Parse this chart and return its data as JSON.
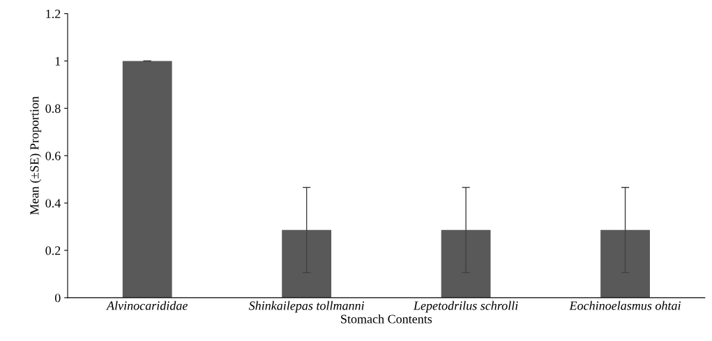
{
  "chart_data": {
    "type": "bar",
    "categories": [
      "Alvinocarididae",
      "Shinkailepas tollmanni",
      "Lepetodrilus schrolli",
      "Eochinoelasmus ohtai"
    ],
    "values": [
      1,
      0.286,
      0.286,
      0.286
    ],
    "errors": [
      0,
      0.18,
      0.18,
      0.18
    ],
    "color": "#595959",
    "xlabel": "Stomach Contents",
    "ylabel": "Mean (±SE) Proportion",
    "ylim": [
      0,
      1.2
    ],
    "yticks": [
      0,
      0.2,
      0.4,
      0.6,
      0.8,
      1,
      1.2
    ],
    "grid": false,
    "legend": false
  }
}
